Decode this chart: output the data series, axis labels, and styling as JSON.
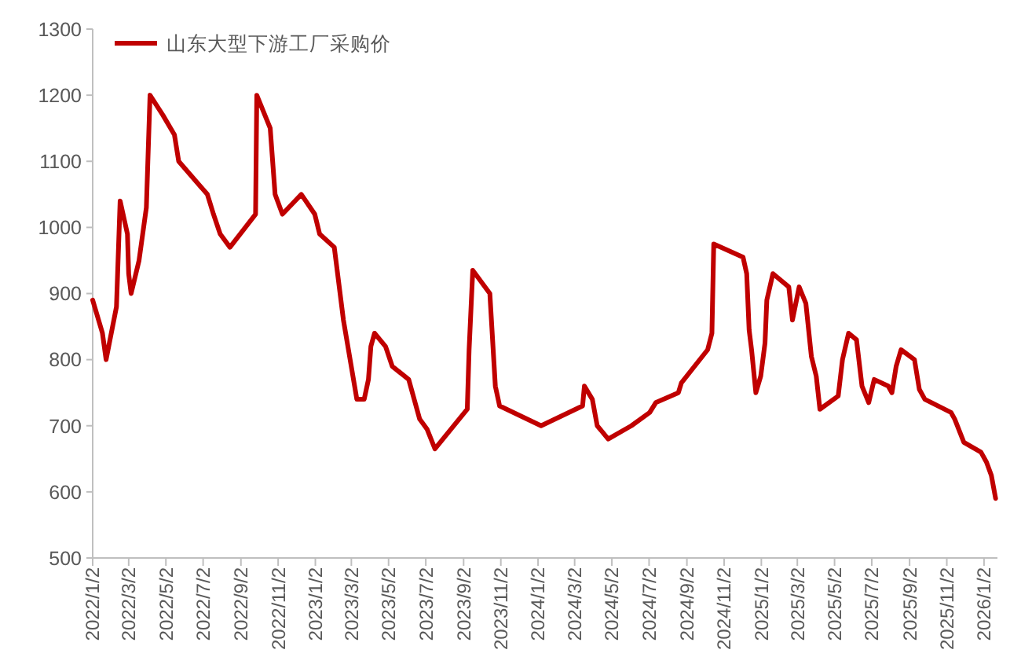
{
  "chart_data": {
    "type": "line",
    "legend": "top left",
    "x": [
      "2022-01-02",
      "2022-01-18",
      "2022-01-24",
      "2022-02-10",
      "2022-02-16",
      "2022-02-28",
      "2022-03-02",
      "2022-03-06",
      "2022-03-19",
      "2022-03-31",
      "2022-04-06",
      "2022-04-27",
      "2022-05-16",
      "2022-05-23",
      "2022-07-09",
      "2022-07-19",
      "2022-07-30",
      "2022-08-15",
      "2022-09-26",
      "2022-09-28",
      "2022-10-20",
      "2022-10-28",
      "2022-11-09",
      "2022-12-10",
      "2023-01-01",
      "2023-01-09",
      "2023-02-02",
      "2023-02-17",
      "2023-03-11",
      "2023-03-23",
      "2023-03-30",
      "2023-04-03",
      "2023-04-09",
      "2023-04-27",
      "2023-05-08",
      "2023-06-04",
      "2023-06-22",
      "2023-07-04",
      "2023-07-17",
      "2023-09-08",
      "2023-09-11",
      "2023-09-17",
      "2023-10-15",
      "2023-10-24",
      "2023-10-31",
      "2024-01-07",
      "2024-03-15",
      "2024-03-18",
      "2024-03-31",
      "2024-04-08",
      "2024-04-26",
      "2024-06-03",
      "2024-07-03",
      "2024-07-13",
      "2024-08-19",
      "2024-08-24",
      "2024-10-06",
      "2024-10-13",
      "2024-10-16",
      "2024-12-03",
      "2024-12-09",
      "2024-12-13",
      "2024-12-17",
      "2024-12-24",
      "2025-01-01",
      "2025-01-08",
      "2025-01-11",
      "2025-01-21",
      "2025-02-16",
      "2025-02-22",
      "2025-03-05",
      "2025-03-16",
      "2025-03-25",
      "2025-04-02",
      "2025-04-08",
      "2025-05-08",
      "2025-05-15",
      "2025-05-25",
      "2025-06-07",
      "2025-06-16",
      "2025-06-27",
      "2025-07-06",
      "2025-07-29",
      "2025-08-04",
      "2025-08-11",
      "2025-08-19",
      "2025-09-10",
      "2025-09-18",
      "2025-09-27",
      "2025-11-09",
      "2025-11-15",
      "2025-11-30",
      "2025-12-28",
      "2026-01-06",
      "2026-01-14",
      "2026-01-21"
    ],
    "series": [
      {
        "name": "山东大型下游工厂采购价",
        "color": "#c00000",
        "values": [
          890,
          840,
          800,
          880,
          1040,
          990,
          930,
          900,
          950,
          1030,
          1200,
          1170,
          1140,
          1100,
          1050,
          1020,
          990,
          970,
          1020,
          1200,
          1150,
          1050,
          1020,
          1050,
          1020,
          990,
          970,
          860,
          740,
          740,
          770,
          820,
          840,
          820,
          790,
          770,
          710,
          695,
          665,
          725,
          815,
          935,
          900,
          760,
          730,
          700,
          730,
          760,
          740,
          700,
          680,
          700,
          720,
          735,
          750,
          765,
          815,
          840,
          975,
          955,
          930,
          845,
          815,
          750,
          775,
          825,
          890,
          930,
          910,
          860,
          910,
          885,
          805,
          775,
          725,
          745,
          800,
          840,
          830,
          760,
          735,
          770,
          760,
          750,
          790,
          815,
          800,
          755,
          740,
          720,
          710,
          675,
          660,
          645,
          625,
          590
        ]
      }
    ],
    "xlim": [
      "2022-01-02",
      "2026-01-24"
    ],
    "xticks": [
      {
        "value": "2022-01-02",
        "label": "2022/1/2"
      },
      {
        "value": "2022-03-02",
        "label": "2022/3/2"
      },
      {
        "value": "2022-05-02",
        "label": "2022/5/2"
      },
      {
        "value": "2022-07-02",
        "label": "2022/7/2"
      },
      {
        "value": "2022-09-02",
        "label": "2022/9/2"
      },
      {
        "value": "2022-11-02",
        "label": "2022/11/2"
      },
      {
        "value": "2023-01-02",
        "label": "2023/1/2"
      },
      {
        "value": "2023-03-02",
        "label": "2023/3/2"
      },
      {
        "value": "2023-05-02",
        "label": "2023/5/2"
      },
      {
        "value": "2023-07-02",
        "label": "2023/7/2"
      },
      {
        "value": "2023-09-02",
        "label": "2023/9/2"
      },
      {
        "value": "2023-11-02",
        "label": "2023/11/2"
      },
      {
        "value": "2024-01-02",
        "label": "2024/1/2"
      },
      {
        "value": "2024-03-02",
        "label": "2024/3/2"
      },
      {
        "value": "2024-05-02",
        "label": "2024/5/2"
      },
      {
        "value": "2024-07-02",
        "label": "2024/7/2"
      },
      {
        "value": "2024-09-02",
        "label": "2024/9/2"
      },
      {
        "value": "2024-11-02",
        "label": "2024/11/2"
      },
      {
        "value": "2025-01-02",
        "label": "2025/1/2"
      },
      {
        "value": "2025-03-02",
        "label": "2025/3/2"
      },
      {
        "value": "2025-05-02",
        "label": "2025/5/2"
      },
      {
        "value": "2025-07-02",
        "label": "2025/7/2"
      },
      {
        "value": "2025-09-02",
        "label": "2025/9/2"
      },
      {
        "value": "2025-11-02",
        "label": "2025/11/2"
      },
      {
        "value": "2026-01-02",
        "label": "2026/1/2"
      }
    ],
    "ylim": [
      500,
      1300
    ],
    "yticks": [
      500,
      600,
      700,
      800,
      900,
      1000,
      1100,
      1200,
      1300
    ]
  }
}
